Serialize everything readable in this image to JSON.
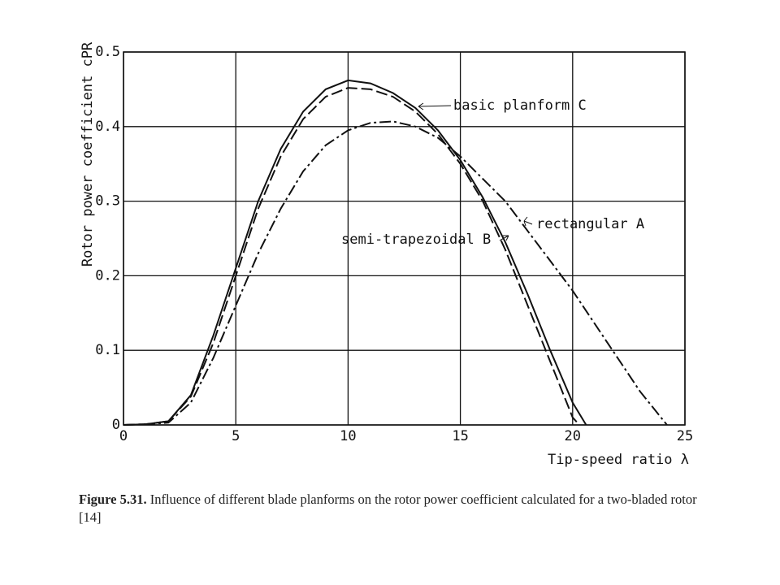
{
  "chart_data": {
    "type": "line",
    "y_label": "Rotor power coefficient cPR",
    "x_label": "Tip-speed ratio λ",
    "xlim": [
      0,
      25
    ],
    "xticks": [
      0,
      5,
      10,
      15,
      20,
      25
    ],
    "ylim": [
      0,
      0.5
    ],
    "yticks": [
      0,
      0.1,
      0.2,
      0.3,
      0.4,
      0.5
    ],
    "grid": true,
    "series": [
      {
        "name": "basic planform C",
        "color": "#111111",
        "dash": "solid",
        "x": [
          0,
          1,
          2,
          3,
          4,
          5,
          6,
          7,
          8,
          9,
          10,
          11,
          12,
          13,
          14,
          15,
          16,
          17,
          18,
          19,
          20,
          20.6
        ],
        "values": [
          0,
          0.001,
          0.005,
          0.04,
          0.12,
          0.21,
          0.3,
          0.37,
          0.42,
          0.45,
          0.462,
          0.458,
          0.445,
          0.425,
          0.395,
          0.355,
          0.305,
          0.245,
          0.175,
          0.1,
          0.03,
          0
        ]
      },
      {
        "name": "semi-trapezoidal B",
        "color": "#111111",
        "dash": "dashed",
        "x": [
          0,
          1,
          2,
          3,
          4,
          5,
          6,
          7,
          8,
          9,
          10,
          11,
          12,
          13,
          14,
          15,
          16,
          17,
          18,
          19,
          20,
          20.3
        ],
        "values": [
          0,
          0.001,
          0.005,
          0.038,
          0.11,
          0.2,
          0.29,
          0.36,
          0.41,
          0.44,
          0.452,
          0.45,
          0.44,
          0.42,
          0.39,
          0.35,
          0.3,
          0.235,
          0.16,
          0.085,
          0.01,
          0
        ]
      },
      {
        "name": "rectangular A",
        "color": "#111111",
        "dash": "dashdot",
        "x": [
          0,
          1,
          2,
          3,
          4,
          5,
          6,
          7,
          8,
          9,
          10,
          11,
          12,
          13,
          14,
          15,
          16,
          17,
          18,
          19,
          20,
          21,
          22,
          23,
          24.2
        ],
        "values": [
          0,
          0.001,
          0.003,
          0.03,
          0.09,
          0.16,
          0.23,
          0.29,
          0.34,
          0.375,
          0.395,
          0.405,
          0.407,
          0.4,
          0.385,
          0.36,
          0.33,
          0.3,
          0.26,
          0.22,
          0.18,
          0.135,
          0.09,
          0.045,
          0
        ]
      }
    ]
  },
  "caption": {
    "label": "Figure 5.31.",
    "text": "Influence of different blade planforms on the rotor power coefficient calculated for a two-bladed rotor [14]"
  }
}
